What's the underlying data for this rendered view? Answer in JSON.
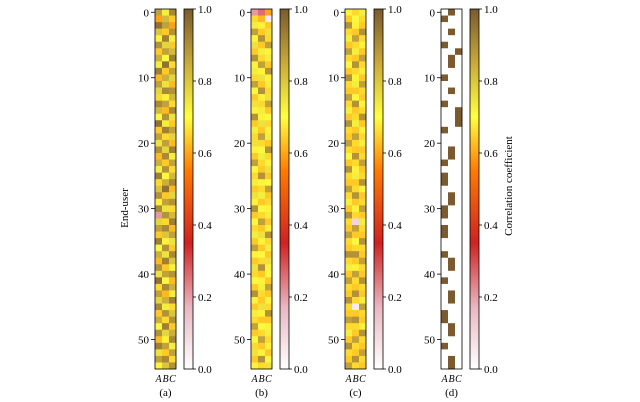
{
  "figure": {
    "ylabel": "End-user",
    "colorbar_label": "Correlation coefficient",
    "colormap": [
      "#ffffff",
      "#e9b8c2",
      "#cf2222",
      "#ff7a00",
      "#ffff40",
      "#c9a93a",
      "#7a5a2e"
    ]
  },
  "chart_data": [
    {
      "type": "heatmap",
      "panel_label": "(a)",
      "columns": [
        "A",
        "B",
        "C"
      ],
      "y_ticks": [
        0,
        10,
        20,
        30,
        40,
        50
      ],
      "row_count": 55,
      "colorbar_ticks": [
        "0.0",
        "0.2",
        "0.4",
        "0.6",
        "0.8",
        "1.0"
      ],
      "vrange": [
        0,
        1
      ],
      "values": [
        [
          0.85,
          0.7,
          0.9
        ],
        [
          0.55,
          0.8,
          0.6
        ],
        [
          0.95,
          0.85,
          0.55
        ],
        [
          0.78,
          0.6,
          0.88
        ],
        [
          0.65,
          0.92,
          0.7
        ],
        [
          0.88,
          0.75,
          0.6
        ],
        [
          0.6,
          0.85,
          0.8
        ],
        [
          0.82,
          0.68,
          0.92
        ],
        [
          0.7,
          0.95,
          0.62
        ],
        [
          0.92,
          0.6,
          0.85
        ],
        [
          0.58,
          0.82,
          0.75
        ],
        [
          0.85,
          0.72,
          0.58
        ],
        [
          0.75,
          0.9,
          0.88
        ],
        [
          0.62,
          0.65,
          0.8
        ],
        [
          0.9,
          0.85,
          0.62
        ],
        [
          0.8,
          0.58,
          0.9
        ],
        [
          0.68,
          0.88,
          0.72
        ],
        [
          0.95,
          0.7,
          0.6
        ],
        [
          0.6,
          0.92,
          0.85
        ],
        [
          0.85,
          0.62,
          0.75
        ],
        [
          0.72,
          0.85,
          0.58
        ],
        [
          0.88,
          0.75,
          0.92
        ],
        [
          0.58,
          0.9,
          0.7
        ],
        [
          0.82,
          0.6,
          0.85
        ],
        [
          0.7,
          0.88,
          0.62
        ],
        [
          0.92,
          0.68,
          0.8
        ],
        [
          0.62,
          0.82,
          0.9
        ],
        [
          0.78,
          0.95,
          0.58
        ],
        [
          0.88,
          0.6,
          0.75
        ],
        [
          0.65,
          0.85,
          0.88
        ],
        [
          0.9,
          0.72,
          0.62
        ],
        [
          0.2,
          0.88,
          0.8
        ],
        [
          0.75,
          0.62,
          0.92
        ],
        [
          0.85,
          0.9,
          0.58
        ],
        [
          0.6,
          0.78,
          0.85
        ],
        [
          0.92,
          0.65,
          0.72
        ],
        [
          0.68,
          0.88,
          0.6
        ],
        [
          0.82,
          0.72,
          0.9
        ],
        [
          0.58,
          0.92,
          0.78
        ],
        [
          0.88,
          0.6,
          0.65
        ],
        [
          0.72,
          0.85,
          0.88
        ],
        [
          0.95,
          0.68,
          0.58
        ],
        [
          0.62,
          0.9,
          0.82
        ],
        [
          0.85,
          0.58,
          0.7
        ],
        [
          0.75,
          0.82,
          0.92
        ],
        [
          0.9,
          0.7,
          0.62
        ],
        [
          0.6,
          0.88,
          0.78
        ],
        [
          0.82,
          0.62,
          0.88
        ],
        [
          0.68,
          0.92,
          0.6
        ],
        [
          0.88,
          0.75,
          0.82
        ],
        [
          0.58,
          0.65,
          0.9
        ],
        [
          0.92,
          0.85,
          0.7
        ],
        [
          0.72,
          0.6,
          0.85
        ],
        [
          0.85,
          0.9,
          0.62
        ],
        [
          0.65,
          0.78,
          0.88
        ]
      ]
    },
    {
      "type": "heatmap",
      "panel_label": "(b)",
      "columns": [
        "A",
        "B",
        "C"
      ],
      "y_ticks": [
        0,
        10,
        20,
        30,
        40,
        50
      ],
      "row_count": 55,
      "colorbar_ticks": [
        "0.0",
        "0.2",
        "0.4",
        "0.6",
        "0.8",
        "1.0"
      ],
      "vrange": [
        0,
        1
      ],
      "values": [
        [
          0.2,
          0.25,
          0.55
        ],
        [
          0.62,
          0.58,
          0.05
        ],
        [
          0.7,
          0.65,
          0.6
        ],
        [
          0.85,
          0.6,
          0.72
        ],
        [
          0.65,
          0.88,
          0.62
        ],
        [
          0.72,
          0.6,
          0.85
        ],
        [
          0.6,
          0.7,
          0.65
        ],
        [
          0.88,
          0.62,
          0.7
        ],
        [
          0.65,
          0.85,
          0.6
        ],
        [
          0.7,
          0.65,
          0.88
        ],
        [
          0.62,
          0.72,
          0.65
        ],
        [
          0.85,
          0.6,
          0.7
        ],
        [
          0.68,
          0.88,
          0.62
        ],
        [
          0.6,
          0.65,
          0.72
        ],
        [
          0.72,
          0.62,
          0.85
        ],
        [
          0.65,
          0.7,
          0.6
        ],
        [
          0.88,
          0.65,
          0.68
        ],
        [
          0.6,
          0.72,
          0.62
        ],
        [
          0.7,
          0.6,
          0.65
        ],
        [
          0.62,
          0.85,
          0.7
        ],
        [
          0.72,
          0.62,
          0.6
        ],
        [
          0.65,
          0.68,
          0.88
        ],
        [
          0.6,
          0.7,
          0.62
        ],
        [
          0.85,
          0.62,
          0.65
        ],
        [
          0.68,
          0.6,
          0.72
        ],
        [
          0.62,
          0.88,
          0.6
        ],
        [
          0.7,
          0.65,
          0.68
        ],
        [
          0.6,
          0.62,
          0.85
        ],
        [
          0.72,
          0.7,
          0.6
        ],
        [
          0.65,
          0.6,
          0.62
        ],
        [
          0.88,
          0.68,
          0.65
        ],
        [
          0.6,
          0.62,
          0.7
        ],
        [
          0.68,
          0.85,
          0.6
        ],
        [
          0.62,
          0.6,
          0.65
        ],
        [
          0.7,
          0.72,
          0.88
        ],
        [
          0.6,
          0.65,
          0.62
        ],
        [
          0.85,
          0.6,
          0.7
        ],
        [
          0.65,
          0.68,
          0.6
        ],
        [
          0.6,
          0.62,
          0.72
        ],
        [
          0.72,
          0.88,
          0.65
        ],
        [
          0.62,
          0.6,
          0.68
        ],
        [
          0.68,
          0.65,
          0.6
        ],
        [
          0.6,
          0.7,
          0.85
        ],
        [
          0.88,
          0.62,
          0.6
        ],
        [
          0.65,
          0.6,
          0.65
        ],
        [
          0.6,
          0.72,
          0.62
        ],
        [
          0.7,
          0.65,
          0.88
        ],
        [
          0.62,
          0.6,
          0.6
        ],
        [
          0.85,
          0.68,
          0.65
        ],
        [
          0.6,
          0.62,
          0.7
        ],
        [
          0.68,
          0.85,
          0.62
        ],
        [
          0.62,
          0.6,
          0.65
        ],
        [
          0.72,
          0.65,
          0.6
        ],
        [
          0.6,
          0.88,
          0.68
        ],
        [
          0.65,
          0.62,
          0.72
        ]
      ]
    },
    {
      "type": "heatmap",
      "panel_label": "(c)",
      "columns": [
        "A",
        "B",
        "C"
      ],
      "y_ticks": [
        0,
        10,
        20,
        30,
        40,
        50
      ],
      "row_count": 55,
      "colorbar_ticks": [
        "0.0",
        "0.2",
        "0.4",
        "0.6",
        "0.8",
        "1.0"
      ],
      "vrange": [
        0,
        1
      ],
      "values": [
        [
          0.65,
          0.62,
          0.7
        ],
        [
          0.6,
          0.68,
          0.62
        ],
        [
          0.88,
          0.65,
          0.6
        ],
        [
          0.62,
          0.6,
          0.88
        ],
        [
          0.7,
          0.85,
          0.62
        ],
        [
          0.6,
          0.62,
          0.65
        ],
        [
          0.85,
          0.7,
          0.6
        ],
        [
          0.62,
          0.6,
          0.85
        ],
        [
          0.68,
          0.88,
          0.62
        ],
        [
          0.6,
          0.62,
          0.7
        ],
        [
          0.88,
          0.65,
          0.6
        ],
        [
          0.62,
          0.7,
          0.85
        ],
        [
          0.6,
          0.6,
          0.62
        ],
        [
          0.85,
          0.68,
          0.6
        ],
        [
          0.62,
          0.88,
          0.65
        ],
        [
          0.7,
          0.6,
          0.62
        ],
        [
          0.6,
          0.62,
          0.88
        ],
        [
          0.88,
          0.7,
          0.6
        ],
        [
          0.62,
          0.6,
          0.65
        ],
        [
          0.6,
          0.85,
          0.62
        ],
        [
          0.85,
          0.62,
          0.7
        ],
        [
          0.62,
          0.6,
          0.6
        ],
        [
          0.68,
          0.88,
          0.62
        ],
        [
          0.6,
          0.62,
          0.85
        ],
        [
          0.88,
          0.65,
          0.6
        ],
        [
          0.62,
          0.7,
          0.62
        ],
        [
          0.6,
          0.6,
          0.88
        ],
        [
          0.85,
          0.62,
          0.65
        ],
        [
          0.62,
          0.88,
          0.6
        ],
        [
          0.7,
          0.6,
          0.62
        ],
        [
          0.6,
          0.65,
          0.85
        ],
        [
          0.88,
          0.62,
          0.6
        ],
        [
          0.62,
          0.1,
          0.7
        ],
        [
          0.6,
          0.85,
          0.62
        ],
        [
          0.85,
          0.6,
          0.6
        ],
        [
          0.62,
          0.68,
          0.88
        ],
        [
          0.6,
          0.62,
          0.62
        ],
        [
          0.88,
          0.88,
          0.6
        ],
        [
          0.62,
          0.6,
          0.85
        ],
        [
          0.7,
          0.65,
          0.62
        ],
        [
          0.6,
          0.85,
          0.6
        ],
        [
          0.85,
          0.62,
          0.88
        ],
        [
          0.62,
          0.6,
          0.62
        ],
        [
          0.6,
          0.88,
          0.6
        ],
        [
          0.88,
          0.62,
          0.7
        ],
        [
          0.62,
          0.05,
          0.85
        ],
        [
          0.6,
          0.6,
          0.62
        ],
        [
          0.85,
          0.88,
          0.6
        ],
        [
          0.62,
          0.62,
          0.65
        ],
        [
          0.7,
          0.6,
          0.88
        ],
        [
          0.6,
          0.85,
          0.62
        ],
        [
          0.88,
          0.62,
          0.6
        ],
        [
          0.62,
          0.6,
          0.85
        ],
        [
          0.6,
          0.88,
          0.62
        ],
        [
          0.85,
          0.62,
          0.6
        ]
      ]
    },
    {
      "type": "heatmap",
      "panel_label": "(d)",
      "columns": [
        "A",
        "B",
        "C"
      ],
      "y_ticks": [
        0,
        10,
        20,
        30,
        40,
        50
      ],
      "row_count": 55,
      "colorbar_ticks": [
        "0.0",
        "0.2",
        "0.4",
        "0.6",
        "0.8",
        "1.0"
      ],
      "vrange": [
        0,
        1
      ],
      "values": [
        [
          0,
          1,
          0
        ],
        [
          1,
          0,
          0
        ],
        [
          0,
          0,
          0
        ],
        [
          0,
          1,
          0
        ],
        [
          0,
          0,
          0
        ],
        [
          1,
          0,
          0
        ],
        [
          0,
          0,
          1
        ],
        [
          0,
          1,
          0
        ],
        [
          0,
          1,
          0
        ],
        [
          0,
          0,
          0
        ],
        [
          1,
          0,
          0
        ],
        [
          0,
          0,
          0
        ],
        [
          0,
          1,
          0
        ],
        [
          0,
          0,
          0
        ],
        [
          1,
          0,
          0
        ],
        [
          0,
          0,
          1
        ],
        [
          0,
          0,
          1
        ],
        [
          0,
          0,
          1
        ],
        [
          1,
          0,
          0
        ],
        [
          0,
          0,
          0
        ],
        [
          0,
          0,
          0
        ],
        [
          0,
          1,
          0
        ],
        [
          0,
          1,
          0
        ],
        [
          1,
          0,
          0
        ],
        [
          0,
          0,
          0
        ],
        [
          1,
          0,
          0
        ],
        [
          1,
          0,
          0
        ],
        [
          0,
          0,
          0
        ],
        [
          0,
          1,
          0
        ],
        [
          0,
          1,
          0
        ],
        [
          1,
          0,
          0
        ],
        [
          1,
          0,
          0
        ],
        [
          0,
          0,
          0
        ],
        [
          1,
          0,
          0
        ],
        [
          1,
          0,
          0
        ],
        [
          0,
          0,
          0
        ],
        [
          0,
          0,
          0
        ],
        [
          1,
          0,
          0
        ],
        [
          0,
          1,
          0
        ],
        [
          0,
          1,
          0
        ],
        [
          0,
          0,
          0
        ],
        [
          1,
          0,
          0
        ],
        [
          0,
          0,
          0
        ],
        [
          0,
          1,
          0
        ],
        [
          0,
          1,
          0
        ],
        [
          0,
          0,
          0
        ],
        [
          1,
          0,
          0
        ],
        [
          1,
          0,
          0
        ],
        [
          0,
          1,
          0
        ],
        [
          0,
          1,
          0
        ],
        [
          0,
          0,
          0
        ],
        [
          1,
          0,
          0
        ],
        [
          0,
          0,
          0
        ],
        [
          0,
          1,
          0
        ],
        [
          0,
          1,
          0
        ]
      ]
    }
  ]
}
